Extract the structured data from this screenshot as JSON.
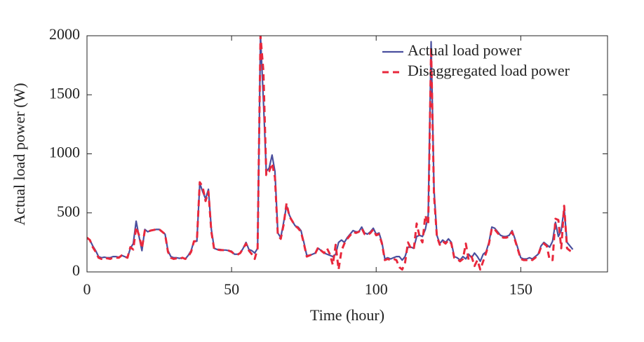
{
  "chart_data": {
    "type": "line",
    "xlabel": "Time (hour)",
    "ylabel": "Actual load power (W)",
    "xlim": [
      0,
      180
    ],
    "ylim": [
      0,
      2000
    ],
    "xticks": [
      0,
      50,
      100,
      150
    ],
    "yticks": [
      0,
      500,
      1000,
      1500,
      2000
    ],
    "grid": false,
    "legend": "upper right",
    "x": [
      0,
      1,
      2,
      3,
      4,
      5,
      6,
      7,
      8,
      9,
      10,
      11,
      12,
      13,
      14,
      15,
      16,
      17,
      18,
      19,
      20,
      21,
      22,
      23,
      24,
      25,
      26,
      27,
      28,
      29,
      30,
      31,
      32,
      33,
      34,
      35,
      36,
      37,
      38,
      39,
      40,
      41,
      42,
      43,
      44,
      45,
      46,
      47,
      48,
      49,
      50,
      51,
      52,
      53,
      54,
      55,
      56,
      57,
      58,
      59,
      60,
      61,
      62,
      63,
      64,
      65,
      66,
      67,
      68,
      69,
      70,
      71,
      72,
      73,
      74,
      75,
      76,
      77,
      78,
      79,
      80,
      81,
      82,
      83,
      84,
      85,
      86,
      87,
      88,
      89,
      90,
      91,
      92,
      93,
      94,
      95,
      96,
      97,
      98,
      99,
      100,
      101,
      102,
      103,
      104,
      105,
      106,
      107,
      108,
      109,
      110,
      111,
      112,
      113,
      114,
      115,
      116,
      117,
      118,
      119,
      120,
      121,
      122,
      123,
      124,
      125,
      126,
      127,
      128,
      129,
      130,
      131,
      132,
      133,
      134,
      135,
      136,
      137,
      138,
      139,
      140,
      141,
      142,
      143,
      144,
      145,
      146,
      147,
      148,
      149,
      150,
      151,
      152,
      153,
      154,
      155,
      156,
      157,
      158,
      159,
      160,
      161,
      162,
      163,
      164,
      165,
      166,
      167,
      168
    ],
    "series": [
      {
        "name": "Actual load power",
        "color": "#4a4f9e",
        "dash": false,
        "values": [
          290,
          270,
          220,
          180,
          130,
          120,
          125,
          120,
          120,
          130,
          130,
          125,
          140,
          130,
          120,
          200,
          240,
          430,
          300,
          180,
          360,
          340,
          350,
          355,
          360,
          360,
          340,
          320,
          180,
          130,
          120,
          120,
          115,
          120,
          110,
          140,
          180,
          260,
          260,
          750,
          680,
          620,
          700,
          360,
          200,
          190,
          190,
          185,
          185,
          180,
          175,
          150,
          150,
          160,
          200,
          250,
          190,
          180,
          160,
          200,
          2000,
          1450,
          850,
          880,
          990,
          850,
          330,
          290,
          420,
          560,
          480,
          430,
          390,
          380,
          350,
          250,
          140,
          140,
          150,
          160,
          200,
          180,
          160,
          150,
          140,
          130,
          150,
          250,
          270,
          250,
          290,
          320,
          350,
          340,
          340,
          380,
          330,
          320,
          340,
          370,
          320,
          330,
          250,
          110,
          120,
          110,
          120,
          130,
          130,
          100,
          130,
          210,
          210,
          200,
          300,
          310,
          300,
          360,
          480,
          1950,
          700,
          310,
          240,
          270,
          250,
          280,
          250,
          130,
          120,
          100,
          130,
          110,
          150,
          120,
          160,
          130,
          90,
          150,
          170,
          250,
          380,
          370,
          340,
          310,
          300,
          300,
          310,
          350,
          280,
          200,
          120,
          110,
          110,
          120,
          110,
          130,
          150,
          220,
          250,
          230,
          210,
          260,
          420,
          300,
          350,
          540,
          250,
          220,
          190
        ]
      },
      {
        "name": "Disaggregated load power",
        "color": "#e8283c",
        "dash": true,
        "values": [
          290,
          270,
          210,
          170,
          120,
          110,
          120,
          115,
          110,
          120,
          120,
          120,
          140,
          130,
          120,
          210,
          190,
          380,
          310,
          200,
          350,
          340,
          350,
          355,
          360,
          360,
          340,
          320,
          170,
          120,
          110,
          115,
          110,
          120,
          110,
          130,
          170,
          260,
          260,
          760,
          720,
          600,
          680,
          340,
          190,
          190,
          185,
          185,
          180,
          180,
          170,
          150,
          145,
          160,
          200,
          240,
          180,
          150,
          110,
          200,
          2000,
          1700,
          820,
          850,
          920,
          800,
          310,
          280,
          400,
          580,
          470,
          430,
          390,
          370,
          340,
          240,
          130,
          140,
          150,
          160,
          210,
          180,
          160,
          200,
          150,
          60,
          230,
          20,
          180,
          240,
          280,
          310,
          340,
          330,
          340,
          370,
          320,
          310,
          330,
          360,
          310,
          320,
          240,
          100,
          110,
          100,
          110,
          100,
          40,
          20,
          80,
          250,
          200,
          190,
          410,
          300,
          250,
          480,
          400,
          1900,
          650,
          300,
          230,
          260,
          240,
          270,
          240,
          120,
          110,
          90,
          110,
          240,
          100,
          130,
          50,
          100,
          20,
          90,
          160,
          240,
          370,
          360,
          330,
          300,
          290,
          290,
          300,
          340,
          270,
          190,
          110,
          100,
          100,
          110,
          100,
          120,
          140,
          210,
          240,
          220,
          100,
          100,
          450,
          440,
          200,
          560,
          200,
          180,
          170
        ]
      }
    ]
  }
}
